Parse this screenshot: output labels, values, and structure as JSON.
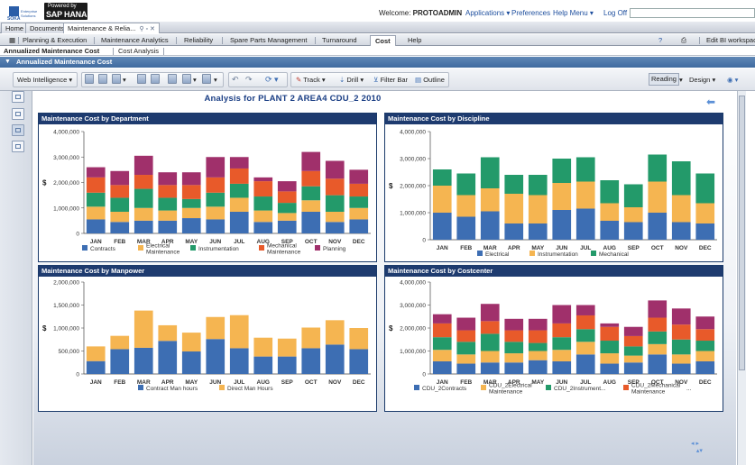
{
  "header": {
    "logo_text": "SOKA",
    "logo_sub": "Enterprise Solutions",
    "sap_top": "Powered by",
    "sap_main": "SAP HANA",
    "welcome": "Welcome:",
    "user": "PROTOADMIN",
    "links": {
      "applications": "Applications",
      "preferences": "Preferences",
      "help_menu": "Help Menu",
      "logoff": "Log Off"
    }
  },
  "tabs_top": [
    "Home",
    "Documents",
    "Maintenance & Relia..."
  ],
  "tabs_main": [
    "Planning & Execution",
    "Maintenance Analytics",
    "Reliability",
    "Spare Parts Management",
    "Turnaround",
    "Cost",
    "Help"
  ],
  "tabs_main_right": "Edit BI workspace",
  "tabs_sub": [
    "Annualized Maintenance Cost",
    "Cost Analysis"
  ],
  "section_title": "Annualized Maintenance Cost",
  "toolbar": {
    "web_intelligence": "Web Intelligence",
    "track": "Track",
    "drill": "Drill",
    "filter_bar": "Filter Bar",
    "outline": "Outline",
    "reading": "Reading",
    "design": "Design"
  },
  "report_title": "Analysis for  PLANT 2  AREA4  CDU_2  2010",
  "colors": {
    "blue": "#3d6eb3",
    "orange": "#f5b551",
    "green": "#239a6a",
    "red": "#e85a2a",
    "purple": "#a0306b",
    "panel_title": "#1e3b6f"
  },
  "chart_data": [
    {
      "type": "bar",
      "title": "Maintenance Cost by Department",
      "ylabel": "$",
      "ylim": [
        0,
        4000000
      ],
      "yticks": [
        "0",
        "1,000,000",
        "2,000,000",
        "3,000,000",
        "4,000,000"
      ],
      "categories": [
        "JAN",
        "FEB",
        "MAR",
        "APR",
        "MAY",
        "JUN",
        "JUL",
        "AUG",
        "SEP",
        "OCT",
        "NOV",
        "DEC"
      ],
      "legend": [
        "Contracts",
        "Electrical Maintenance",
        "Instrumentation",
        "Mechanical Maintenance",
        "Planning"
      ],
      "series": [
        {
          "name": "Contracts",
          "color": "#3d6eb3",
          "values": [
            550000,
            450000,
            500000,
            500000,
            600000,
            550000,
            850000,
            450000,
            500000,
            850000,
            450000,
            550000
          ]
        },
        {
          "name": "Electrical Maintenance",
          "color": "#f5b551",
          "values": [
            500000,
            400000,
            500000,
            400000,
            400000,
            500000,
            550000,
            450000,
            300000,
            450000,
            400000,
            450000
          ]
        },
        {
          "name": "Instrumentation",
          "color": "#239a6a",
          "values": [
            550000,
            550000,
            750000,
            500000,
            350000,
            550000,
            550000,
            550000,
            400000,
            550000,
            650000,
            450000
          ]
        },
        {
          "name": "Mechanical Maintenance",
          "color": "#e85a2a",
          "values": [
            600000,
            500000,
            550000,
            500000,
            550000,
            600000,
            600000,
            600000,
            450000,
            600000,
            650000,
            500000
          ]
        },
        {
          "name": "Planning",
          "color": "#a0306b",
          "values": [
            400000,
            550000,
            750000,
            500000,
            500000,
            800000,
            450000,
            150000,
            400000,
            750000,
            700000,
            550000
          ]
        }
      ]
    },
    {
      "type": "bar",
      "title": "Maintenance Cost by Discipline",
      "ylabel": "$",
      "ylim": [
        0,
        4000000
      ],
      "yticks": [
        "0",
        "1,000,000",
        "2,000,000",
        "3,000,000",
        "4,000,000"
      ],
      "categories": [
        "JAN",
        "FEB",
        "MAR",
        "APR",
        "MAY",
        "JUN",
        "JUL",
        "AUG",
        "SEP",
        "OCT",
        "NOV",
        "DEC"
      ],
      "legend": [
        "Electrical",
        "Instrumentation",
        "Mechanical"
      ],
      "series": [
        {
          "name": "Electrical",
          "color": "#3d6eb3",
          "values": [
            1000000,
            850000,
            1050000,
            600000,
            600000,
            1100000,
            1150000,
            700000,
            650000,
            1000000,
            650000,
            600000
          ]
        },
        {
          "name": "Instrumentation",
          "color": "#f5b551",
          "values": [
            1000000,
            800000,
            850000,
            1100000,
            1050000,
            1000000,
            1000000,
            650000,
            550000,
            1150000,
            1000000,
            750000
          ]
        },
        {
          "name": "Mechanical",
          "color": "#239a6a",
          "values": [
            600000,
            800000,
            1150000,
            700000,
            750000,
            900000,
            900000,
            850000,
            850000,
            1000000,
            1250000,
            1100000
          ]
        }
      ]
    },
    {
      "type": "bar",
      "title": "Maintenance Cost by Manpower",
      "ylabel": "$",
      "ylim": [
        0,
        2000000
      ],
      "yticks": [
        "0",
        "500,000",
        "1,000,000",
        "1,500,000",
        "2,000,000"
      ],
      "categories": [
        "JAN",
        "FEB",
        "MAR",
        "APR",
        "MAY",
        "JUN",
        "JUL",
        "AUG",
        "SEP",
        "OCT",
        "NOV",
        "DEC"
      ],
      "legend": [
        "Contract Man hours",
        "Direct Man Hours"
      ],
      "series": [
        {
          "name": "Contract Man hours",
          "color": "#3d6eb3",
          "values": [
            280000,
            540000,
            570000,
            720000,
            490000,
            760000,
            560000,
            380000,
            380000,
            560000,
            640000,
            540000
          ]
        },
        {
          "name": "Direct Man Hours",
          "color": "#f5b551",
          "values": [
            320000,
            290000,
            810000,
            340000,
            410000,
            480000,
            720000,
            410000,
            390000,
            450000,
            530000,
            460000
          ]
        }
      ]
    },
    {
      "type": "bar",
      "title": "Maintenance Cost by Costcenter",
      "ylabel": "$",
      "ylim": [
        0,
        4000000
      ],
      "yticks": [
        "0",
        "1,000,000",
        "2,000,000",
        "3,000,000",
        "4,000,000"
      ],
      "categories": [
        "JAN",
        "FEB",
        "MAR",
        "APR",
        "MAY",
        "JUN",
        "JUL",
        "AUG",
        "SEP",
        "OCT",
        "NOV",
        "DEC"
      ],
      "legend": [
        "CDU_2Contracts",
        "CDU_2Electrical Maintenance",
        "CDU_2Instrument...",
        "CDU_2Mechanical Maintenance",
        "..."
      ],
      "series": [
        {
          "name": "CDU_2Contracts",
          "color": "#3d6eb3",
          "values": [
            550000,
            450000,
            500000,
            500000,
            600000,
            550000,
            850000,
            450000,
            500000,
            850000,
            450000,
            550000
          ]
        },
        {
          "name": "CDU_2Electrical Maintenance",
          "color": "#f5b551",
          "values": [
            500000,
            400000,
            500000,
            400000,
            400000,
            500000,
            550000,
            450000,
            300000,
            450000,
            400000,
            450000
          ]
        },
        {
          "name": "CDU_2Instrument...",
          "color": "#239a6a",
          "values": [
            550000,
            550000,
            750000,
            500000,
            350000,
            550000,
            550000,
            550000,
            400000,
            550000,
            650000,
            450000
          ]
        },
        {
          "name": "CDU_2Mechanical Maintenance",
          "color": "#e85a2a",
          "values": [
            600000,
            500000,
            550000,
            500000,
            550000,
            600000,
            600000,
            600000,
            450000,
            600000,
            650000,
            500000
          ]
        },
        {
          "name": "",
          "color": "#a0306b",
          "values": [
            400000,
            550000,
            750000,
            500000,
            500000,
            800000,
            450000,
            150000,
            400000,
            750000,
            700000,
            550000
          ]
        }
      ]
    }
  ]
}
